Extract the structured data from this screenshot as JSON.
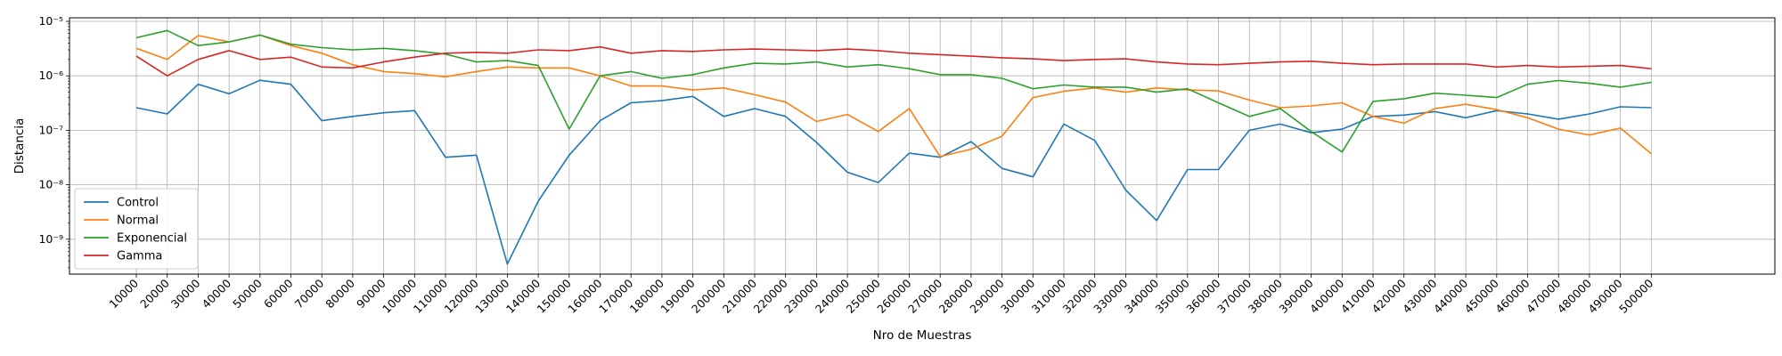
{
  "chart_data": {
    "type": "line",
    "title": "",
    "xlabel": "Nro de Muestras",
    "ylabel": "Distancia",
    "yscale": "log",
    "ylim": [
      2e-10,
      1.2e-05
    ],
    "y_ticks": [
      {
        "value": 1e-09,
        "label": "10⁻⁹"
      },
      {
        "value": 1e-08,
        "label": "10⁻⁸"
      },
      {
        "value": 1e-07,
        "label": "10⁻⁷"
      },
      {
        "value": 1e-06,
        "label": "10⁻⁶"
      },
      {
        "value": 1e-05,
        "label": "10⁻⁵"
      }
    ],
    "grid": true,
    "legend_position": "lower-left",
    "x": [
      10000,
      20000,
      30000,
      40000,
      50000,
      60000,
      70000,
      80000,
      90000,
      100000,
      110000,
      120000,
      130000,
      140000,
      150000,
      160000,
      170000,
      180000,
      190000,
      200000,
      210000,
      220000,
      230000,
      240000,
      250000,
      260000,
      270000,
      280000,
      290000,
      300000,
      310000,
      320000,
      330000,
      340000,
      350000,
      360000,
      370000,
      380000,
      390000,
      400000,
      410000,
      420000,
      430000,
      440000,
      450000,
      460000,
      470000,
      480000,
      490000,
      500000
    ],
    "series": [
      {
        "name": "Control",
        "color": "#1f77b4",
        "values": [
          2.6e-07,
          2e-07,
          7e-07,
          4.7e-07,
          8.3e-07,
          7e-07,
          1.5e-07,
          1.8e-07,
          2.1e-07,
          2.3e-07,
          3.2e-08,
          3.5e-08,
          3.5e-10,
          5e-09,
          3.5e-08,
          1.5e-07,
          3.2e-07,
          3.5e-07,
          4.2e-07,
          1.8e-07,
          2.5e-07,
          1.8e-07,
          6e-08,
          1.7e-08,
          1.1e-08,
          3.8e-08,
          3.2e-08,
          6.2e-08,
          2e-08,
          1.4e-08,
          1.3e-07,
          6.5e-08,
          8e-09,
          2.2e-09,
          1.9e-08,
          1.9e-08,
          1e-07,
          1.3e-07,
          9e-08,
          1.05e-07,
          1.8e-07,
          1.9e-07,
          2.2e-07,
          1.7e-07,
          2.3e-07,
          2e-07,
          1.6e-07,
          2e-07,
          2.7e-07,
          2.6e-07
        ]
      },
      {
        "name": "Normal",
        "color": "#ff7f0e",
        "values": [
          3.2e-06,
          2e-06,
          5.5e-06,
          4.2e-06,
          5.6e-06,
          3.6e-06,
          2.6e-06,
          1.6e-06,
          1.2e-06,
          1.1e-06,
          9.6e-07,
          1.2e-06,
          1.45e-06,
          1.4e-06,
          1.4e-06,
          1e-06,
          6.5e-07,
          6.5e-07,
          5.5e-07,
          6e-07,
          4.5e-07,
          3.3e-07,
          1.45e-07,
          1.95e-07,
          9.5e-08,
          2.5e-07,
          3.3e-08,
          4.5e-08,
          7.8e-08,
          4e-07,
          5.2e-07,
          6e-07,
          5e-07,
          6e-07,
          5.5e-07,
          5.3e-07,
          3.6e-07,
          2.6e-07,
          2.8e-07,
          3.2e-07,
          1.8e-07,
          1.35e-07,
          2.5e-07,
          3e-07,
          2.4e-07,
          1.7e-07,
          1.05e-07,
          8.2e-08,
          1.1e-07,
          3.7e-08
        ]
      },
      {
        "name": "Exponencial",
        "color": "#2ca02c",
        "values": [
          5e-06,
          6.8e-06,
          3.6e-06,
          4.2e-06,
          5.6e-06,
          3.8e-06,
          3.3e-06,
          3e-06,
          3.2e-06,
          2.9e-06,
          2.5e-06,
          1.8e-06,
          1.9e-06,
          1.55e-06,
          1.05e-07,
          1e-06,
          1.2e-06,
          9e-07,
          1.05e-06,
          1.4e-06,
          1.7e-06,
          1.65e-06,
          1.8e-06,
          1.45e-06,
          1.6e-06,
          1.35e-06,
          1.05e-06,
          1.05e-06,
          9e-07,
          5.8e-07,
          6.8e-07,
          6.2e-07,
          6.2e-07,
          5e-07,
          5.8e-07,
          3.2e-07,
          1.8e-07,
          2.5e-07,
          9.5e-08,
          4e-08,
          3.4e-07,
          3.8e-07,
          4.8e-07,
          4.4e-07,
          4e-07,
          7e-07,
          8.2e-07,
          7.3e-07,
          6.2e-07,
          7.6e-07
        ]
      },
      {
        "name": "Gamma",
        "color": "#d62728",
        "values": [
          2.3e-06,
          1e-06,
          2e-06,
          2.9e-06,
          2e-06,
          2.2e-06,
          1.45e-06,
          1.4e-06,
          1.8e-06,
          2.2e-06,
          2.6e-06,
          2.7e-06,
          2.6e-06,
          3e-06,
          2.9e-06,
          3.4e-06,
          2.6e-06,
          2.9e-06,
          2.8e-06,
          3e-06,
          3.1e-06,
          3e-06,
          2.9e-06,
          3.1e-06,
          2.9e-06,
          2.6e-06,
          2.45e-06,
          2.3e-06,
          2.15e-06,
          2.05e-06,
          1.9e-06,
          2e-06,
          2.05e-06,
          1.8e-06,
          1.65e-06,
          1.6e-06,
          1.7e-06,
          1.8e-06,
          1.85e-06,
          1.7e-06,
          1.6e-06,
          1.65e-06,
          1.65e-06,
          1.65e-06,
          1.45e-06,
          1.55e-06,
          1.45e-06,
          1.5e-06,
          1.55e-06,
          1.35e-06
        ]
      }
    ]
  }
}
